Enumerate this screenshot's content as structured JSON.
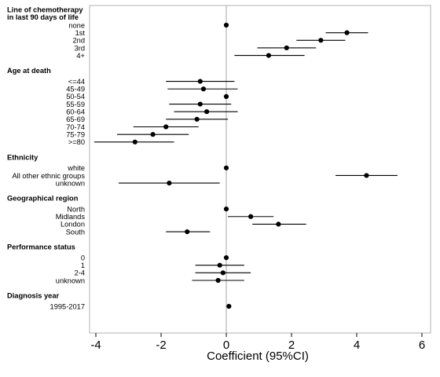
{
  "chart_data": {
    "type": "scatter",
    "subtype": "forest-plot",
    "xlabel": "Coefficient (95%CI)",
    "ylabel": "",
    "xlim": [
      -4,
      6
    ],
    "xticks": [
      "-4",
      "-2",
      "0",
      "2",
      "4",
      "6"
    ],
    "reference_line_x": 0,
    "grid": false,
    "groups": [
      {
        "title": [
          "Line of chemotherapy",
          "in last 90 days of life"
        ],
        "rows": [
          {
            "label": "none",
            "coef": 0.0
          },
          {
            "label": "1st",
            "coef": 3.7,
            "ci": [
              3.05,
              4.35
            ]
          },
          {
            "label": "2nd",
            "coef": 2.9,
            "ci": [
              2.15,
              3.65
            ]
          },
          {
            "label": "3rd",
            "coef": 1.85,
            "ci": [
              0.95,
              2.75
            ]
          },
          {
            "label": "4+",
            "coef": 1.3,
            "ci": [
              0.25,
              2.4
            ]
          }
        ]
      },
      {
        "title": [
          "Age at death"
        ],
        "rows": [
          {
            "label": "<=44",
            "coef": -0.8,
            "ci": [
              -1.85,
              0.25
            ]
          },
          {
            "label": "45-49",
            "coef": -0.7,
            "ci": [
              -1.8,
              0.35
            ]
          },
          {
            "label": "50-54",
            "coef": 0.0
          },
          {
            "label": "55-59",
            "coef": -0.8,
            "ci": [
              -1.75,
              0.15
            ]
          },
          {
            "label": "60-64",
            "coef": -0.6,
            "ci": [
              -1.6,
              0.35
            ]
          },
          {
            "label": "65-69",
            "coef": -0.9,
            "ci": [
              -1.85,
              0.05
            ]
          },
          {
            "label": "70-74",
            "coef": -1.85,
            "ci": [
              -2.85,
              -0.85
            ]
          },
          {
            "label": "75-79",
            "coef": -2.25,
            "ci": [
              -3.35,
              -1.15
            ]
          },
          {
            "label": ">=80",
            "coef": -2.8,
            "ci": [
              -4.05,
              -1.6
            ]
          }
        ]
      },
      {
        "title": [
          "Ethnicity"
        ],
        "rows": [
          {
            "label": "white",
            "coef": 0.0
          },
          {
            "label": "All other ethnic groups",
            "coef": 4.3,
            "ci": [
              3.35,
              5.25
            ]
          },
          {
            "label": "unknown",
            "coef": -1.75,
            "ci": [
              -3.3,
              -0.2
            ]
          }
        ]
      },
      {
        "title": [
          "Geographical region"
        ],
        "rows": [
          {
            "label": "North",
            "coef": 0.0
          },
          {
            "label": "Midlands",
            "coef": 0.75,
            "ci": [
              0.05,
              1.45
            ]
          },
          {
            "label": "London",
            "coef": 1.6,
            "ci": [
              0.8,
              2.45
            ]
          },
          {
            "label": "South",
            "coef": -1.2,
            "ci": [
              -1.85,
              -0.5
            ]
          }
        ]
      },
      {
        "title": [
          "Performance status"
        ],
        "rows": [
          {
            "label": "0",
            "coef": 0.0
          },
          {
            "label": "1",
            "coef": -0.2,
            "ci": [
              -0.95,
              0.55
            ]
          },
          {
            "label": "2-4",
            "coef": -0.1,
            "ci": [
              -0.95,
              0.75
            ]
          },
          {
            "label": "unknown",
            "coef": -0.25,
            "ci": [
              -1.05,
              0.55
            ]
          }
        ]
      },
      {
        "title": [
          "Diagnosis year"
        ],
        "rows": [
          {
            "label": "1995-2017",
            "coef": 0.08
          }
        ]
      }
    ]
  },
  "colors": {
    "marker": "#000000",
    "ci_line": "#000000",
    "reference_line": "#b5b5b5",
    "frame": "#b0b0b0"
  }
}
